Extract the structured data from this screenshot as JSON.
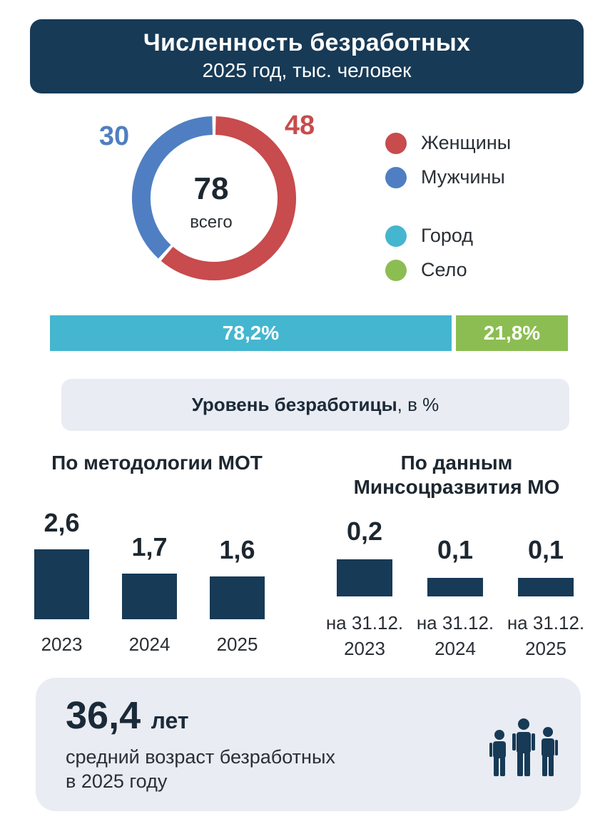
{
  "header": {
    "title": "Численность безработных",
    "subtitle": "2025 год, тыс. человек"
  },
  "chart_data": [
    {
      "type": "pie",
      "variant": "donut",
      "center_value": "78",
      "center_label": "всего",
      "series": [
        {
          "name": "Женщины",
          "value": 48,
          "label": "48",
          "color": "#c84b4d"
        },
        {
          "name": "Мужчины",
          "value": 30,
          "label": "30",
          "color": "#4f7fc2"
        }
      ]
    },
    {
      "type": "bar",
      "variant": "stacked-100",
      "series": [
        {
          "name": "Город",
          "value": 78.2,
          "label": "78,2%",
          "color": "#45b6cf"
        },
        {
          "name": "Село",
          "value": 21.8,
          "label": "21,8%",
          "color": "#8cbd52"
        }
      ]
    },
    {
      "type": "bar",
      "title": "По методологии МОТ",
      "categories": [
        "2023",
        "2024",
        "2025"
      ],
      "values": [
        2.6,
        1.7,
        1.6
      ],
      "value_labels": [
        "2,6",
        "1,7",
        "1,6"
      ],
      "ylim": [
        0,
        2.6
      ]
    },
    {
      "type": "bar",
      "title": "По данным Минсоцразвития МО",
      "categories": [
        "на 31.12. 2023",
        "на 31.12. 2024",
        "на 31.12. 2025"
      ],
      "category_lines": [
        [
          "на 31.12.",
          "2023"
        ],
        [
          "на 31.12.",
          "2024"
        ],
        [
          "на 31.12.",
          "2025"
        ]
      ],
      "values": [
        0.2,
        0.1,
        0.1
      ],
      "value_labels": [
        "0,2",
        "0,1",
        "0,1"
      ]
    }
  ],
  "legend": {
    "items": [
      {
        "label": "Женщины",
        "color": "#c84b4d"
      },
      {
        "label": "Мужчины",
        "color": "#4f7fc2"
      },
      {
        "label": "Город",
        "color": "#45b6cf"
      },
      {
        "label": "Село",
        "color": "#8cbd52"
      }
    ]
  },
  "unemployment_rate": {
    "title_bold": "Уровень безработицы",
    "title_suffix": ", в %"
  },
  "age": {
    "value": "36,4",
    "unit": "лет",
    "desc_line1": "средний возраст безработных",
    "desc_line2": "в 2025 году",
    "icon": "people-icon"
  }
}
